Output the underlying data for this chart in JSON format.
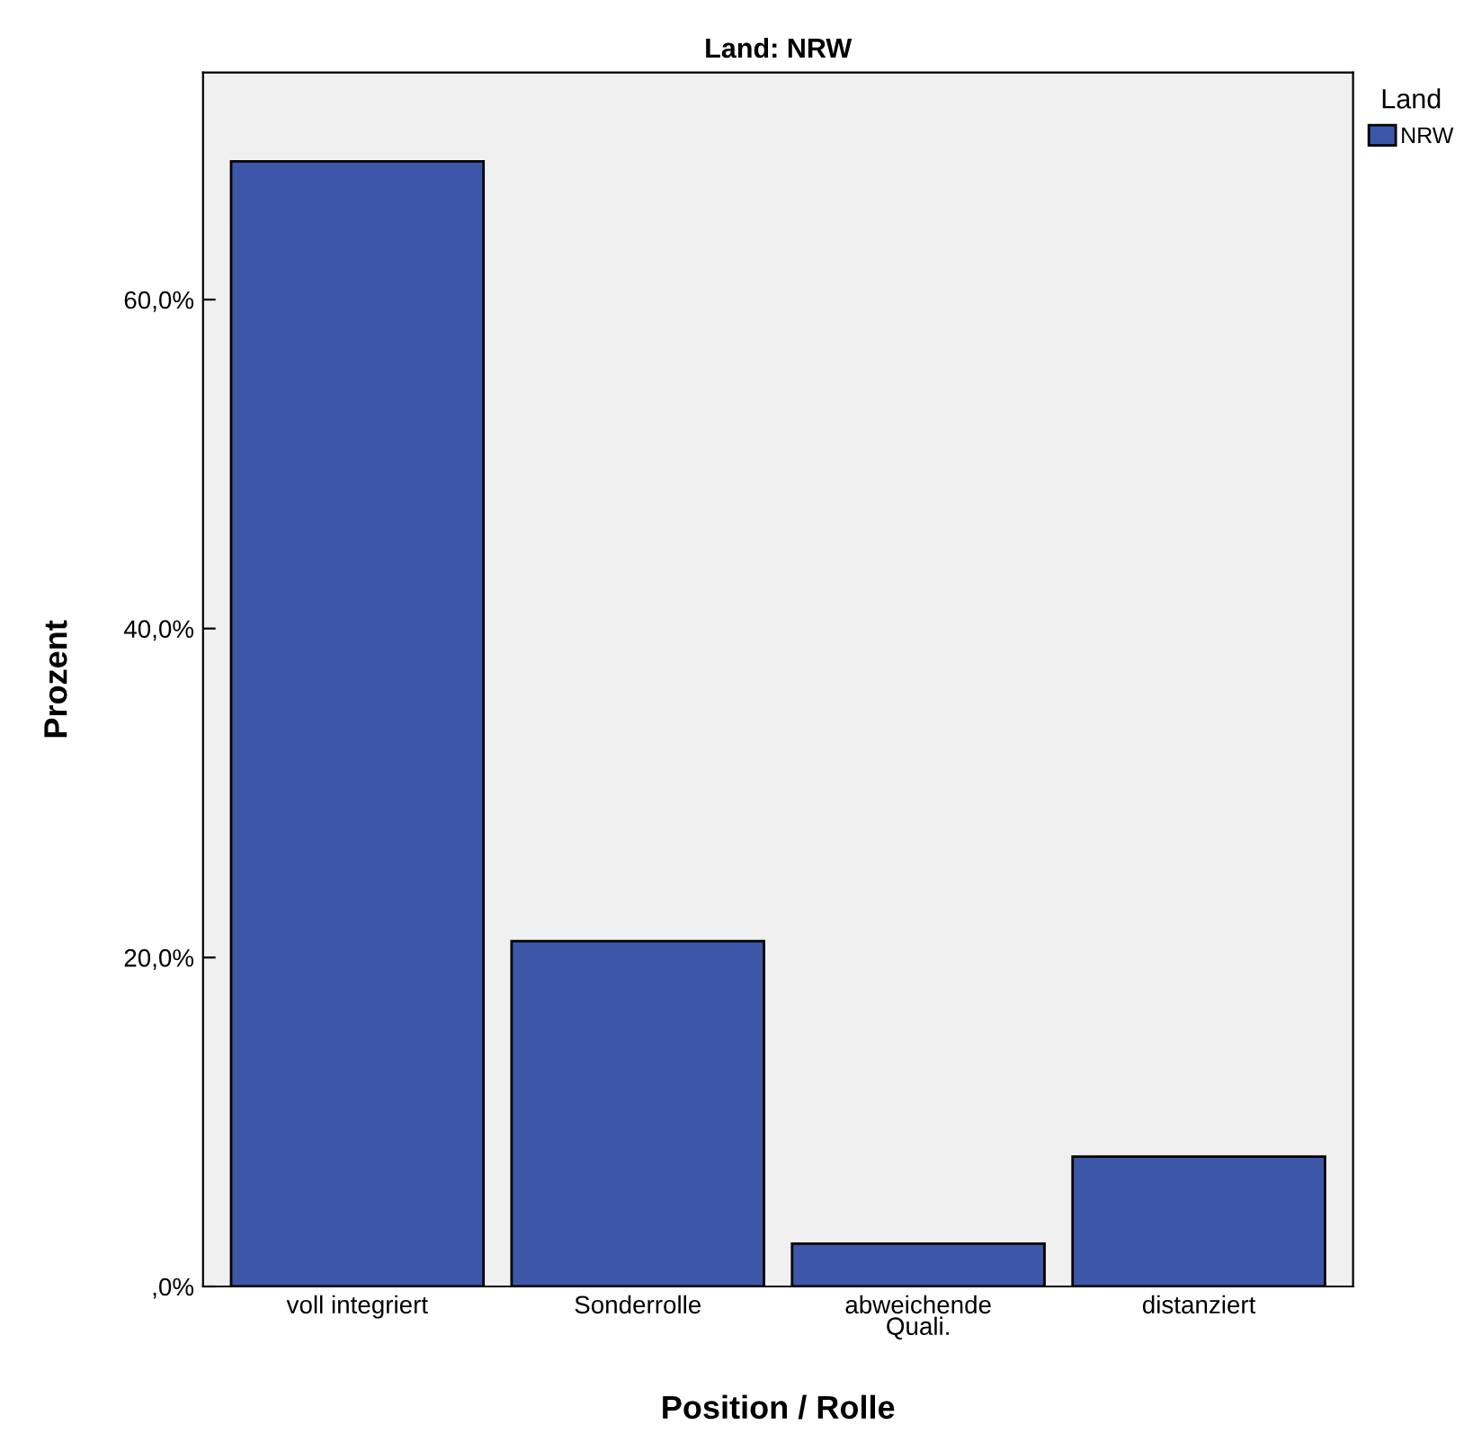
{
  "chart_data": {
    "type": "bar",
    "title": "Land: NRW",
    "xlabel": "Position / Rolle",
    "ylabel": "Prozent",
    "legend_title": "Land",
    "categories": [
      "voll integriert",
      "Sonderrolle",
      "abweichende\nQuali.",
      "distanziert"
    ],
    "series": [
      {
        "name": "NRW",
        "color": "#3c56a8",
        "values": [
          68.4,
          21.0,
          2.6,
          7.9
        ]
      }
    ],
    "ylim": [
      0,
      73.8
    ],
    "yticks": [
      {
        "value": 0,
        "label": ",0%"
      },
      {
        "value": 20,
        "label": "20,0%"
      },
      {
        "value": 40,
        "label": "40,0%"
      },
      {
        "value": 60,
        "label": "60,0%"
      }
    ],
    "legend": "top right"
  }
}
